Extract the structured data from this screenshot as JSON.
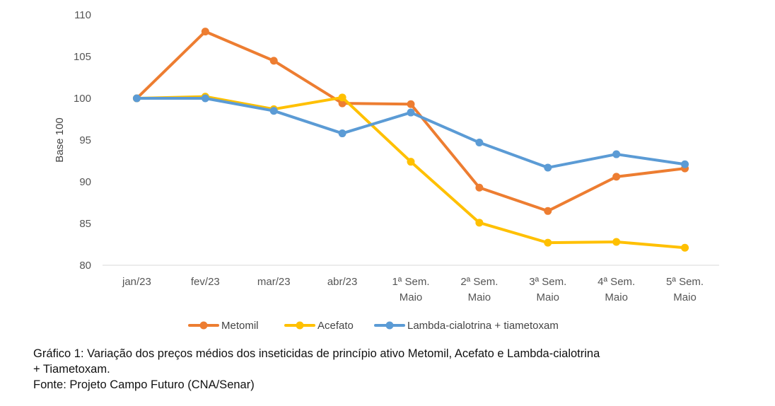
{
  "chart_data": {
    "type": "line",
    "title": "",
    "xlabel": "",
    "ylabel": "Base 100",
    "ylim": [
      80,
      110
    ],
    "yticks": [
      80,
      85,
      90,
      95,
      100,
      105,
      110
    ],
    "grid": false,
    "legend_position": "bottom",
    "categories": [
      [
        "jan/23"
      ],
      [
        "fev/23"
      ],
      [
        "mar/23"
      ],
      [
        "abr/23"
      ],
      [
        "1ª Sem.",
        "Maio"
      ],
      [
        "2ª Sem.",
        "Maio"
      ],
      [
        "3ª Sem.",
        "Maio"
      ],
      [
        "4ª Sem.",
        "Maio"
      ],
      [
        "5ª Sem.",
        "Maio"
      ]
    ],
    "series": [
      {
        "name": "Metomil",
        "color": "#ED7D31",
        "values": [
          100,
          108,
          104.5,
          99.4,
          99.3,
          89.3,
          86.5,
          90.6,
          91.6
        ]
      },
      {
        "name": "Acefato",
        "color": "#FFC000",
        "values": [
          100,
          100.2,
          98.7,
          100.1,
          92.4,
          85.1,
          82.7,
          82.8,
          82.1
        ]
      },
      {
        "name": "Lambda-cialotrina + tiametoxam",
        "color": "#5B9BD5",
        "values": [
          100,
          100,
          98.5,
          95.8,
          98.3,
          94.7,
          91.7,
          93.3,
          92.1
        ]
      }
    ]
  },
  "caption": {
    "line1": "Gráfico 1: Variação dos preços médios dos inseticidas de princípio ativo Metomil, Acefato e Lambda-cialotrina",
    "line2": "+ Tiametoxam.",
    "source": "Fonte: Projeto Campo Futuro (CNA/Senar)"
  }
}
